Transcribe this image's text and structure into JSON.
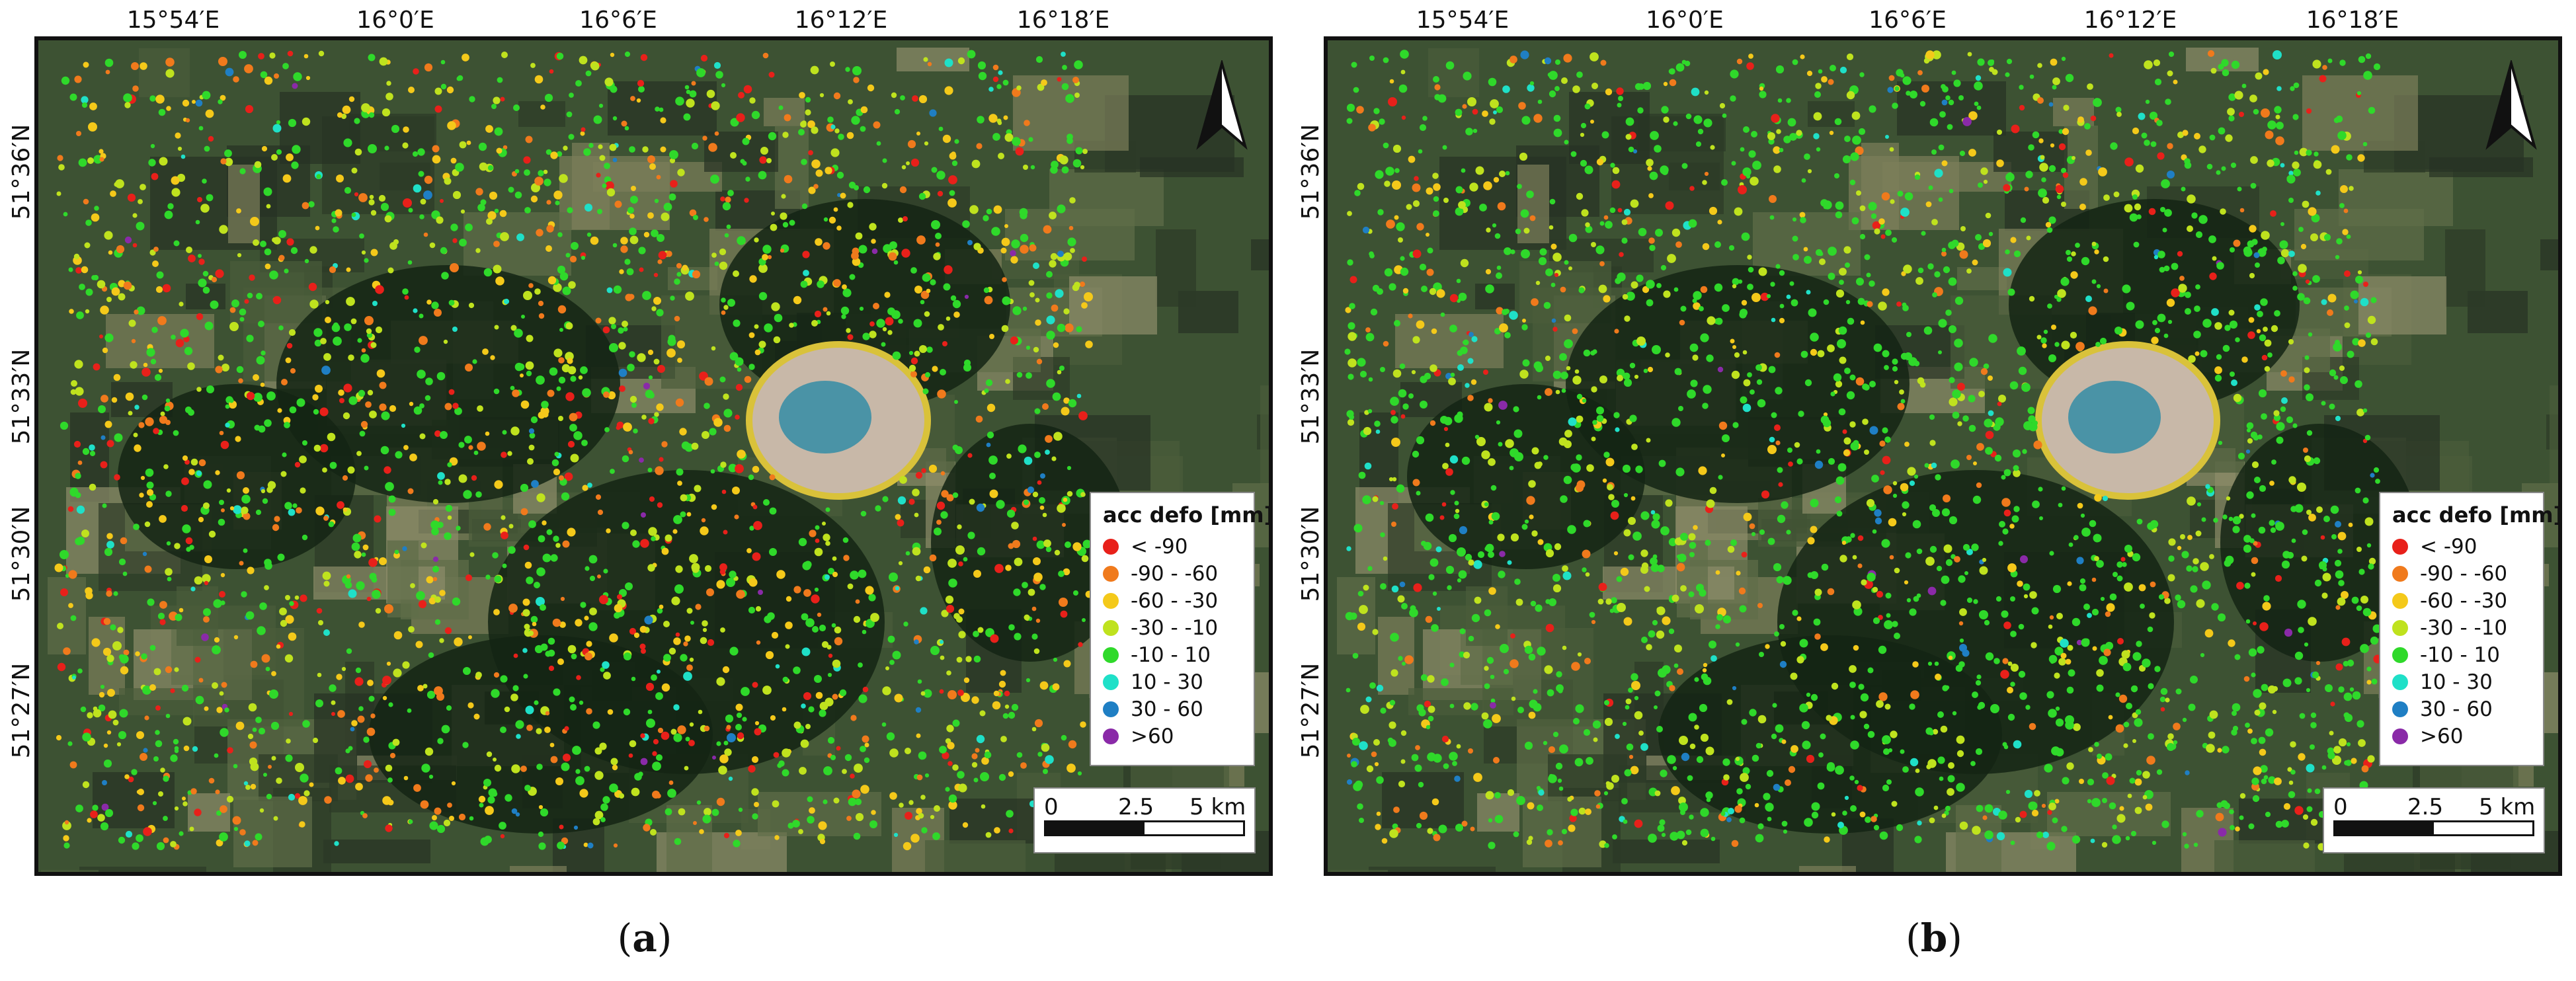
{
  "panels": [
    {
      "id": "a",
      "caption_letter": "a",
      "x_ticks": [
        "15°54′E",
        "16°0′E",
        "16°6′E",
        "16°12′E",
        "16°18′E"
      ],
      "y_ticks": [
        "51°36′N",
        "51°33′N",
        "51°30′N",
        "51°27′N"
      ],
      "legend": {
        "title": "acc defo [mm]",
        "classes": [
          {
            "label": "< -90",
            "color": "#e8201a"
          },
          {
            "label": "-90 - -60",
            "color": "#f07a1c"
          },
          {
            "label": "-60 - -30",
            "color": "#f4c91a"
          },
          {
            "label": "-30 - -10",
            "color": "#bfe21e"
          },
          {
            "label": "-10 - 10",
            "color": "#2fd92a"
          },
          {
            "label": "10 - 30",
            "color": "#1fe0c8"
          },
          {
            "label": "30 - 60",
            "color": "#1f7fc4"
          },
          {
            "label": ">60",
            "color": "#8a2aa8"
          }
        ]
      },
      "scale": {
        "labels": [
          "0",
          "2.5",
          "5 km"
        ]
      }
    },
    {
      "id": "b",
      "caption_letter": "b",
      "x_ticks": [
        "15°54′E",
        "16°0′E",
        "16°6′E",
        "16°12′E",
        "16°18′E"
      ],
      "y_ticks": [
        "51°36′N",
        "51°33′N",
        "51°30′N",
        "51°27′N"
      ],
      "legend": {
        "title": "acc defo [mm]",
        "classes": [
          {
            "label": "< -90",
            "color": "#e8201a"
          },
          {
            "label": "-90 - -60",
            "color": "#f07a1c"
          },
          {
            "label": "-60 - -30",
            "color": "#f4c91a"
          },
          {
            "label": "-30 - -10",
            "color": "#bfe21e"
          },
          {
            "label": "-10 - 10",
            "color": "#2fd92a"
          },
          {
            "label": "10 - 30",
            "color": "#1fe0c8"
          },
          {
            "label": "30 - 60",
            "color": "#1f7fc4"
          },
          {
            "label": ">60",
            "color": "#8a2aa8"
          }
        ]
      },
      "scale": {
        "labels": [
          "0",
          "2.5",
          "5 km"
        ]
      }
    }
  ],
  "icons": {
    "north_arrow": "north-arrow-icon"
  }
}
